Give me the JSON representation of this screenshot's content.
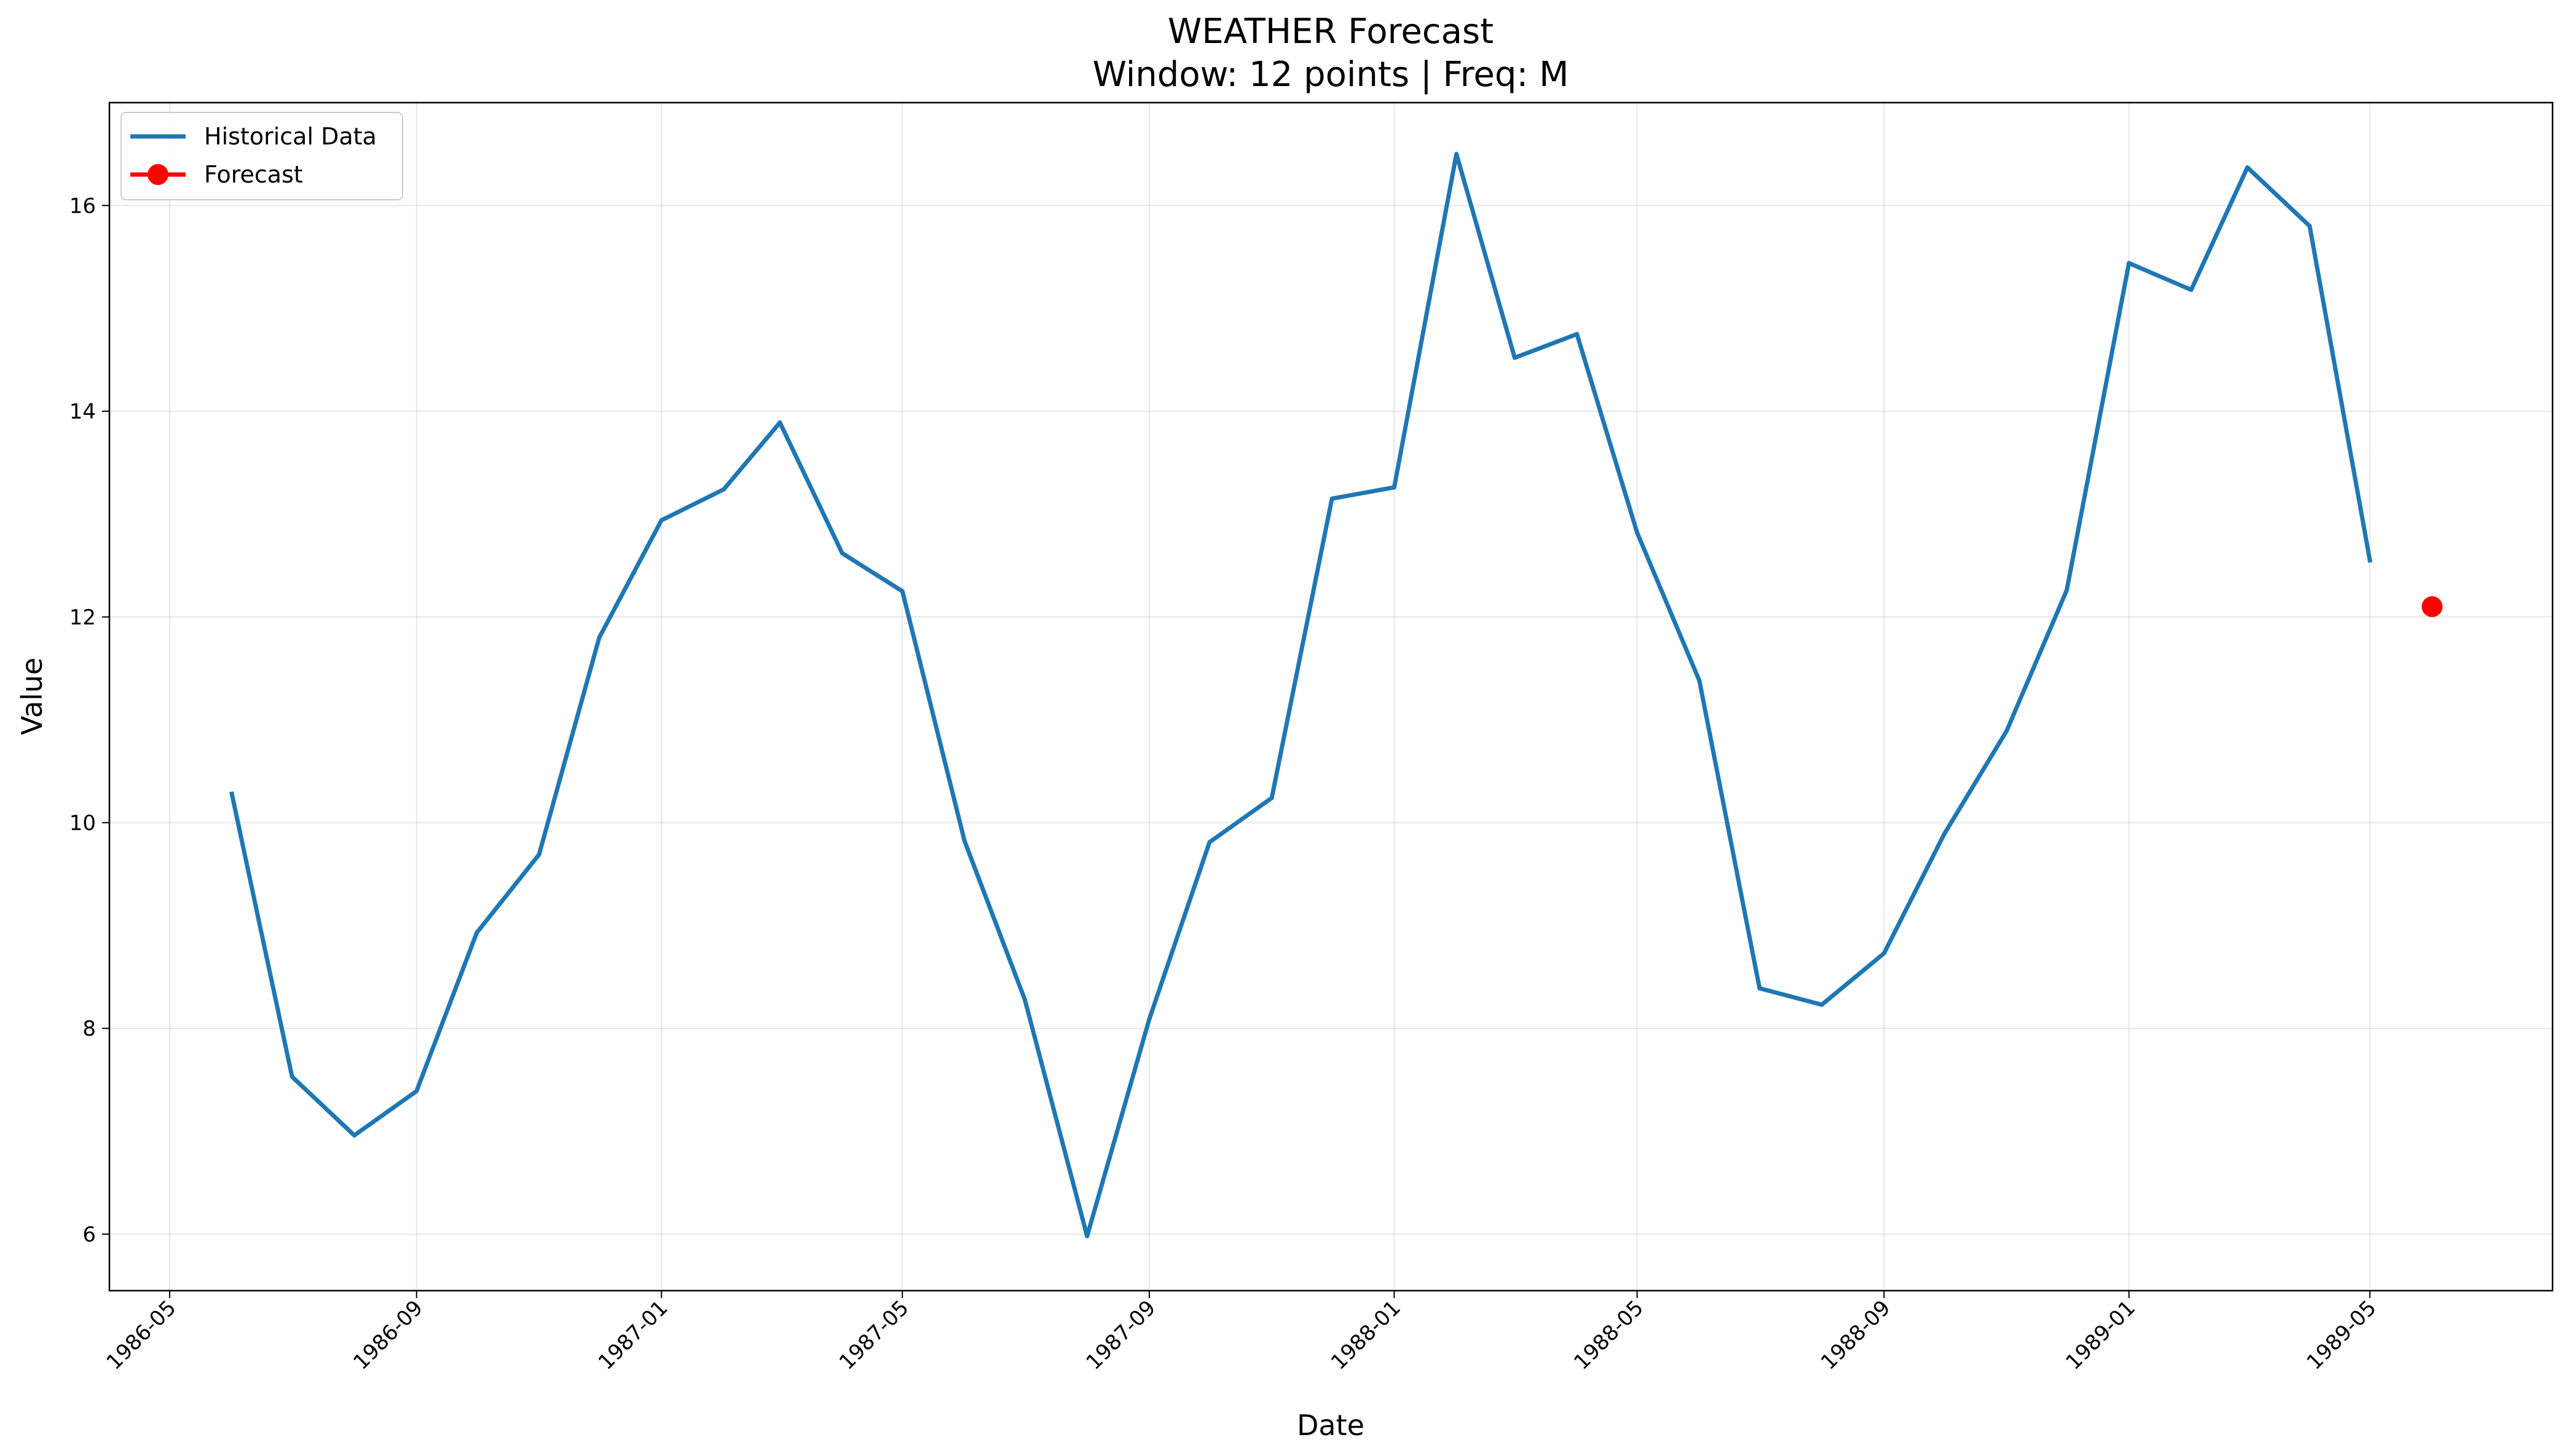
{
  "chart_data": {
    "type": "line",
    "title": "WEATHER Forecast",
    "subtitle": "Window: 12 points | Freq: M",
    "xlabel": "Date",
    "ylabel": "Value",
    "xlim": [
      "1986-04-01",
      "1989-07-31"
    ],
    "ylim": [
      5.45,
      17.0
    ],
    "x_ticks": [
      "1986-05",
      "1986-09",
      "1987-01",
      "1987-05",
      "1987-09",
      "1988-01",
      "1988-05",
      "1988-09",
      "1989-01",
      "1989-05"
    ],
    "y_ticks": [
      6,
      8,
      10,
      12,
      14,
      16
    ],
    "grid": true,
    "legend_position": "top-left",
    "colors": {
      "historical": "#1f77b4",
      "forecast": "#ff0000"
    },
    "series": [
      {
        "name": "Historical Data",
        "style": "line",
        "x": [
          "1986-06-01",
          "1986-07-01",
          "1986-08-01",
          "1986-09-01",
          "1986-10-01",
          "1986-11-01",
          "1986-12-01",
          "1987-01-01",
          "1987-02-01",
          "1987-03-01",
          "1987-04-01",
          "1987-05-01",
          "1987-06-01",
          "1987-07-01",
          "1987-08-01",
          "1987-09-01",
          "1987-10-01",
          "1987-11-01",
          "1987-12-01",
          "1988-01-01",
          "1988-02-01",
          "1988-03-01",
          "1988-04-01",
          "1988-05-01",
          "1988-06-01",
          "1988-07-01",
          "1988-08-01",
          "1988-09-01",
          "1988-10-01",
          "1988-11-01",
          "1988-12-01",
          "1989-01-01",
          "1989-02-01",
          "1989-03-01",
          "1989-04-01",
          "1989-05-01"
        ],
        "values": [
          10.28,
          7.53,
          6.96,
          7.39,
          8.93,
          9.69,
          11.8,
          12.94,
          13.24,
          13.89,
          12.62,
          12.25,
          9.82,
          8.28,
          5.98,
          8.09,
          9.81,
          10.24,
          13.15,
          13.26,
          16.5,
          14.52,
          14.75,
          12.82,
          11.38,
          8.39,
          8.23,
          8.73,
          9.89,
          10.89,
          12.26,
          15.44,
          15.18,
          16.37,
          15.8,
          12.55
        ]
      },
      {
        "name": "Forecast",
        "style": "line-marker",
        "x": [
          "1989-06-01"
        ],
        "values": [
          12.1
        ]
      }
    ]
  }
}
